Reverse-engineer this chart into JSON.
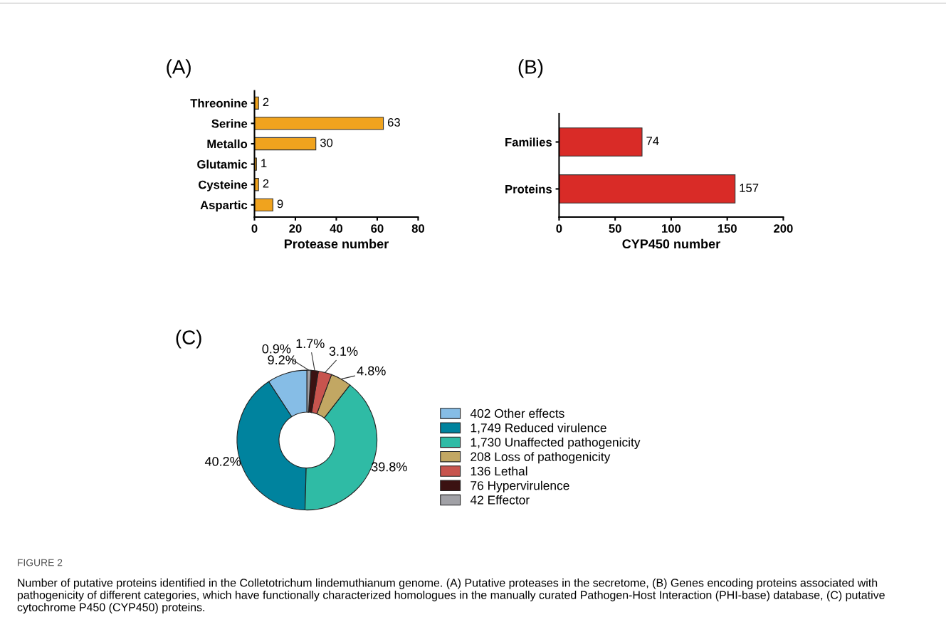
{
  "chart_data": [
    {
      "type": "bar",
      "orientation": "horizontal",
      "title": "(A)",
      "xlabel": "Protease number",
      "categories": [
        "Threonine",
        "Serine",
        "Metallo",
        "Glutamic",
        "Cysteine",
        "Aspartic"
      ],
      "values": [
        2,
        63,
        30,
        1,
        2,
        9
      ],
      "color": "#f0a31e",
      "xlim": [
        0,
        80
      ],
      "xticks": [
        0,
        20,
        40,
        60,
        80
      ],
      "data_labels": true,
      "grid": false
    },
    {
      "type": "bar",
      "orientation": "horizontal",
      "title": "(B)",
      "xlabel": "CYP450 number",
      "categories": [
        "Families",
        "Proteins"
      ],
      "values": [
        74,
        157
      ],
      "color": "#d92b27",
      "xlim": [
        0,
        200
      ],
      "xticks": [
        0,
        50,
        100,
        150,
        200
      ],
      "data_labels": true,
      "grid": false
    },
    {
      "type": "donut",
      "title": "(C)",
      "categories": [
        "402 Other effects",
        "1,749 Reduced virulence",
        "1,730 Unaffected pathogenicity",
        "208 Loss of pathogenicity",
        "136 Lethal",
        "76 Hypervirulence",
        "42 Effector"
      ],
      "values": [
        9.2,
        40.2,
        39.8,
        4.8,
        3.1,
        1.7,
        0.9
      ],
      "value_labels": [
        "9.2%",
        "40.2%",
        "39.8%",
        "4.8%",
        "3.1%",
        "1.7%",
        "0.9%"
      ],
      "colors": [
        "#86bde6",
        "#00839e",
        "#2fbba5",
        "#c2a763",
        "#c7544e",
        "#3b1212",
        "#a1a1a6"
      ],
      "legend": "right",
      "annotations": [
        "FIGURE 2",
        "Number of putative proteins identified in the Colletotrichum lindemuthianum genome. (A) Putative proteases in the secretome, (B) Genes encoding proteins associated with pathogenicity of different categories, which have functionally characterized homologues in the manually curated Pathogen-Host Interaction (PHI-base) database, (C) putative cytochrome P450 (CYP450) proteins."
      ]
    }
  ]
}
